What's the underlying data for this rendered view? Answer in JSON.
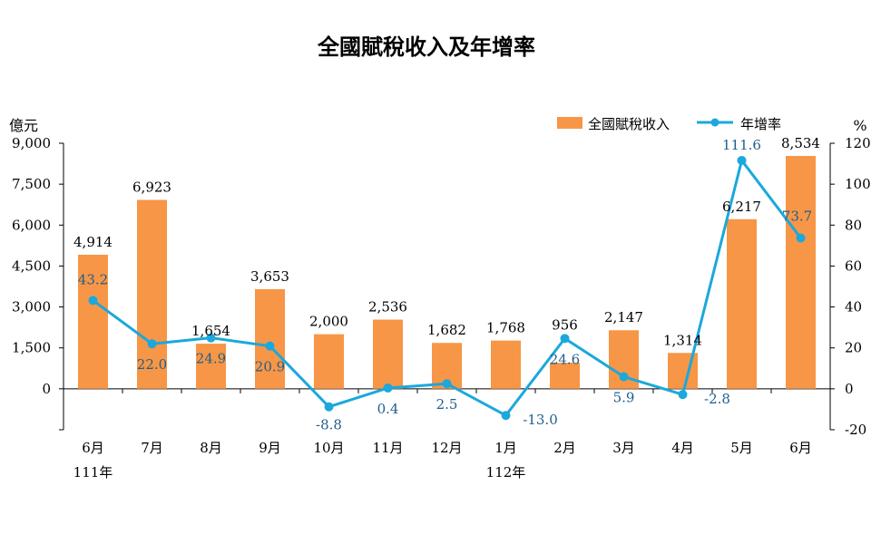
{
  "chart_data": {
    "type": "bar+line",
    "title": "全國賦稅收入及年增率",
    "left_unit": "億元",
    "right_unit": "%",
    "categories": [
      "6月",
      "7月",
      "8月",
      "9月",
      "10月",
      "11月",
      "12月",
      "1月",
      "2月",
      "3月",
      "4月",
      "5月",
      "6月"
    ],
    "year_labels": [
      {
        "index": 0,
        "label": "111年"
      },
      {
        "index": 7,
        "label": "112年"
      }
    ],
    "bar_series": {
      "name": "全國賦稅收入",
      "color": "#F79646",
      "values": [
        4914,
        6923,
        1654,
        3653,
        2000,
        2536,
        1682,
        1768,
        956,
        2147,
        1314,
        6217,
        8534
      ],
      "labels": [
        "4,914",
        "6,923",
        "1,654",
        "3,653",
        "2,000",
        "2,536",
        "1,682",
        "1,768",
        "956",
        "2,147",
        "1,314",
        "6,217",
        "8,534"
      ]
    },
    "line_series": {
      "name": "年增率",
      "color": "#1BA8DC",
      "label_color": "#1F5F8B",
      "values": [
        43.2,
        22.0,
        24.9,
        20.9,
        -8.8,
        0.4,
        2.5,
        -13.0,
        24.6,
        5.9,
        -2.8,
        111.6,
        73.7
      ],
      "labels": [
        "43.2",
        "22.0",
        "24.9",
        "20.9",
        "-8.8",
        "0.4",
        "2.5",
        "-13.0",
        "24.6",
        "5.9",
        "-2.8",
        "111.6",
        "73.7"
      ]
    },
    "left_axis": {
      "min": -1500,
      "max": 9000,
      "ticks": [
        0,
        1500,
        3000,
        4500,
        6000,
        7500,
        9000
      ],
      "tick_labels": [
        "0",
        "1,500",
        "3,000",
        "4,500",
        "6,000",
        "7,500",
        "9,000"
      ]
    },
    "right_axis": {
      "min": -20,
      "max": 120,
      "ticks": [
        -20,
        0,
        20,
        40,
        60,
        80,
        100,
        120
      ],
      "tick_labels": [
        "-20",
        "0",
        "20",
        "40",
        "60",
        "80",
        "100",
        "120"
      ]
    },
    "legend_position": "top-right",
    "grid": false
  }
}
